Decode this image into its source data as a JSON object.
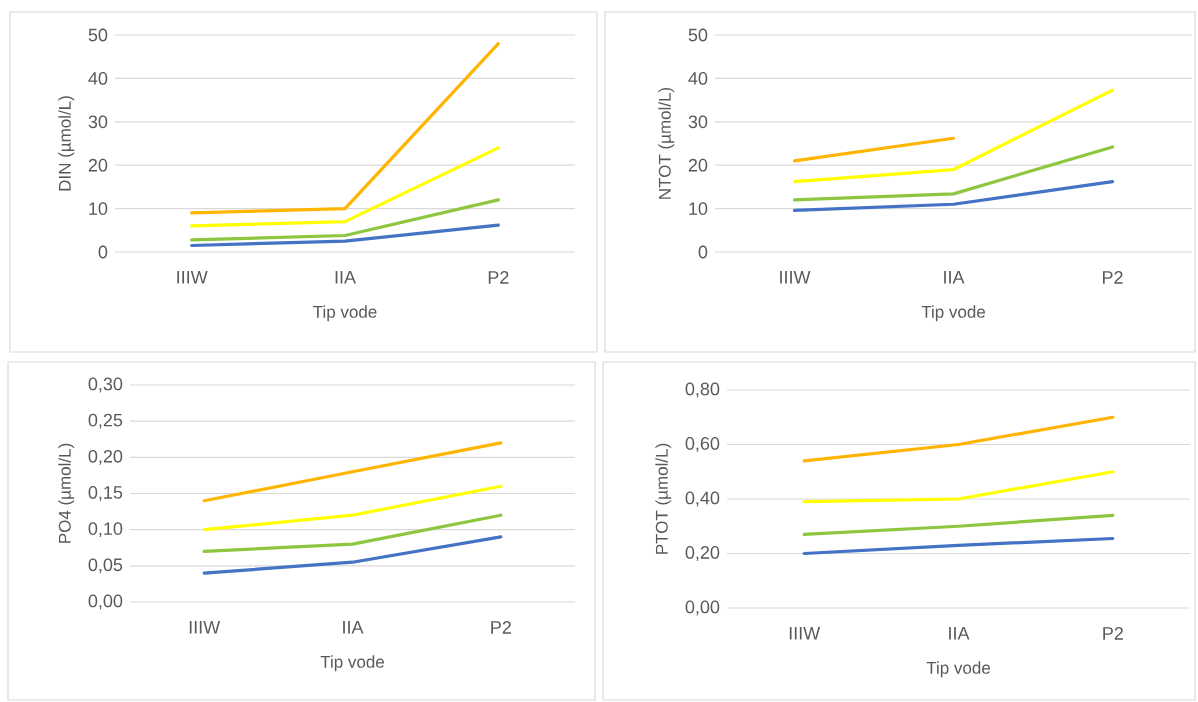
{
  "chart_data": [
    {
      "type": "line",
      "categories": [
        "IIIW",
        "IIA",
        "P2"
      ],
      "xlabel": "Tip vode",
      "ylabel": "DIN (µmol/L)",
      "ylim": [
        0,
        50
      ],
      "yticks": [
        0,
        10,
        20,
        30,
        40,
        50
      ],
      "grid": "y",
      "marker": "none",
      "series": [
        {
          "color": "#4472c4",
          "values": [
            1.5,
            2.5,
            6.2
          ]
        },
        {
          "color": "#8dc63f",
          "values": [
            2.8,
            3.8,
            12
          ]
        },
        {
          "color": "#ffff00",
          "values": [
            6,
            7,
            24
          ]
        },
        {
          "color": "#ffb400",
          "values": [
            9,
            10,
            48
          ]
        }
      ]
    },
    {
      "type": "line",
      "categories": [
        "IIIW",
        "IIA",
        "P2"
      ],
      "xlabel": "Tip vode",
      "ylabel": "NTOT (µmol/L)",
      "ylim": [
        0,
        50
      ],
      "yticks": [
        0,
        10,
        20,
        30,
        40,
        50
      ],
      "grid": "y",
      "marker": "none",
      "series": [
        {
          "color": "#4472c4",
          "values": [
            9.6,
            11,
            16.2
          ]
        },
        {
          "color": "#8dc63f",
          "values": [
            12,
            13.4,
            24.2
          ]
        },
        {
          "color": "#ffff00",
          "values": [
            16.2,
            19,
            37.3
          ]
        },
        {
          "color": "#ffb400",
          "values": [
            21,
            26.2,
            null
          ]
        }
      ]
    },
    {
      "type": "line",
      "categories": [
        "IIIW",
        "IIA",
        "P2"
      ],
      "xlabel": "Tip vode",
      "ylabel": "PO4 (µmol/L)",
      "ylim": [
        0,
        0.3
      ],
      "yticks": [
        {
          "value": 0,
          "label": "0,00"
        },
        {
          "value": 0.05,
          "label": "0,05"
        },
        {
          "value": 0.1,
          "label": "0,10"
        },
        {
          "value": 0.15,
          "label": "0,15"
        },
        {
          "value": 0.2,
          "label": "0,20"
        },
        {
          "value": 0.25,
          "label": "0,25"
        },
        {
          "value": 0.3,
          "label": "0,30"
        }
      ],
      "grid": "y",
      "marker": "none",
      "series": [
        {
          "color": "#4472c4",
          "values": [
            0.04,
            0.055,
            0.09
          ]
        },
        {
          "color": "#8dc63f",
          "values": [
            0.07,
            0.08,
            0.12
          ]
        },
        {
          "color": "#ffff00",
          "values": [
            0.1,
            0.12,
            0.16
          ]
        },
        {
          "color": "#ffb400",
          "values": [
            0.14,
            0.18,
            0.22
          ]
        }
      ]
    },
    {
      "type": "line",
      "categories": [
        "IIIW",
        "IIA",
        "P2"
      ],
      "xlabel": "Tip vode",
      "ylabel": "PTOT (µmol/L)",
      "ylim": [
        0,
        0.8
      ],
      "yticks": [
        {
          "value": 0,
          "label": "0,00"
        },
        {
          "value": 0.2,
          "label": "0,20"
        },
        {
          "value": 0.4,
          "label": "0,40"
        },
        {
          "value": 0.6,
          "label": "0,60"
        },
        {
          "value": 0.8,
          "label": "0,80"
        }
      ],
      "grid": "y",
      "marker": "none",
      "series": [
        {
          "color": "#4472c4",
          "values": [
            0.2,
            0.23,
            0.255
          ]
        },
        {
          "color": "#8dc63f",
          "values": [
            0.27,
            0.3,
            0.34
          ]
        },
        {
          "color": "#ffff00",
          "values": [
            0.39,
            0.4,
            0.5
          ]
        },
        {
          "color": "#ffb400",
          "values": [
            0.54,
            0.6,
            0.7
          ]
        }
      ]
    }
  ]
}
